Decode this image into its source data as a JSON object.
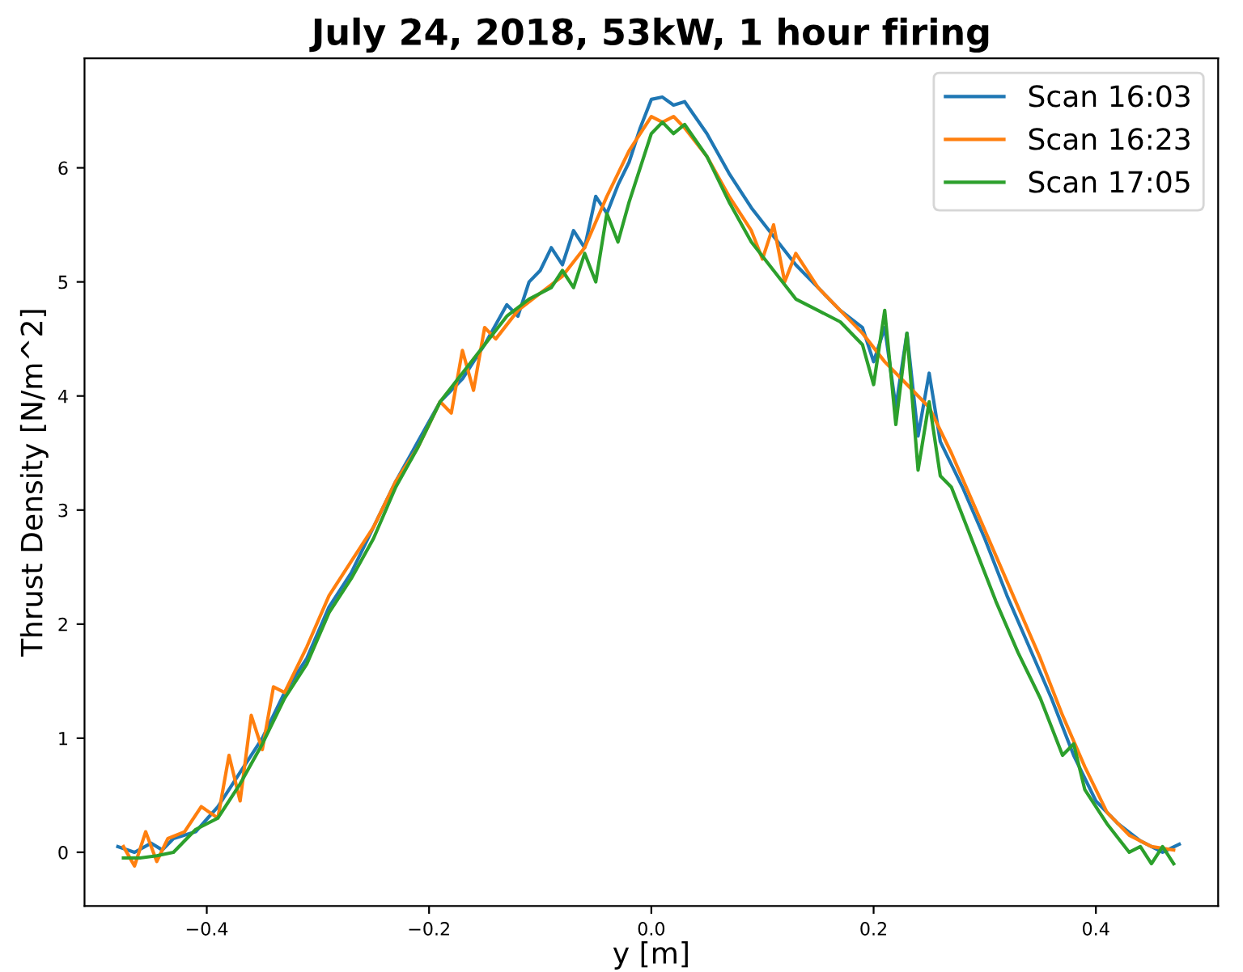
{
  "chart_data": {
    "type": "line",
    "title": "July 24, 2018, 53kW, 1 hour firing",
    "xlabel": "y [m]",
    "ylabel": "Thrust Density [N/m^2]",
    "xlim": [
      -0.51,
      0.51
    ],
    "ylim": [
      -0.47,
      6.96
    ],
    "xticks": [
      {
        "value": -0.4,
        "label": "−0.4"
      },
      {
        "value": -0.2,
        "label": "−0.2"
      },
      {
        "value": 0.0,
        "label": "0.0"
      },
      {
        "value": 0.2,
        "label": "0.2"
      },
      {
        "value": 0.4,
        "label": "0.4"
      }
    ],
    "yticks": [
      0,
      1,
      2,
      3,
      4,
      5,
      6
    ],
    "legend": "top right",
    "grid": false,
    "series": [
      {
        "name": "Scan 16:03",
        "color": "#1f77b4",
        "x": [
          -0.48,
          -0.465,
          -0.45,
          -0.44,
          -0.43,
          -0.41,
          -0.39,
          -0.37,
          -0.35,
          -0.33,
          -0.31,
          -0.29,
          -0.27,
          -0.25,
          -0.23,
          -0.21,
          -0.19,
          -0.17,
          -0.15,
          -0.13,
          -0.12,
          -0.11,
          -0.1,
          -0.09,
          -0.08,
          -0.07,
          -0.06,
          -0.05,
          -0.04,
          -0.03,
          -0.02,
          -0.01,
          0.0,
          0.01,
          0.02,
          0.03,
          0.05,
          0.07,
          0.09,
          0.11,
          0.13,
          0.15,
          0.17,
          0.19,
          0.2,
          0.21,
          0.22,
          0.23,
          0.24,
          0.25,
          0.26,
          0.28,
          0.3,
          0.32,
          0.34,
          0.36,
          0.38,
          0.4,
          0.42,
          0.44,
          0.46,
          0.475
        ],
        "values": [
          0.05,
          0.0,
          0.08,
          0.02,
          0.12,
          0.18,
          0.4,
          0.7,
          1.0,
          1.4,
          1.7,
          2.15,
          2.45,
          2.85,
          3.25,
          3.6,
          3.95,
          4.15,
          4.45,
          4.8,
          4.7,
          5.0,
          5.1,
          5.3,
          5.15,
          5.45,
          5.3,
          5.75,
          5.6,
          5.85,
          6.05,
          6.35,
          6.6,
          6.62,
          6.55,
          6.58,
          6.3,
          5.95,
          5.65,
          5.4,
          5.15,
          4.95,
          4.75,
          4.6,
          4.3,
          4.6,
          3.9,
          4.55,
          3.65,
          4.2,
          3.6,
          3.2,
          2.75,
          2.25,
          1.8,
          1.35,
          0.85,
          0.45,
          0.25,
          0.1,
          0.0,
          0.07
        ]
      },
      {
        "name": "Scan 16:23",
        "color": "#ff7f0e",
        "x": [
          -0.475,
          -0.465,
          -0.455,
          -0.445,
          -0.435,
          -0.42,
          -0.405,
          -0.39,
          -0.38,
          -0.37,
          -0.36,
          -0.35,
          -0.34,
          -0.33,
          -0.31,
          -0.29,
          -0.27,
          -0.25,
          -0.23,
          -0.21,
          -0.19,
          -0.18,
          -0.17,
          -0.16,
          -0.15,
          -0.14,
          -0.12,
          -0.1,
          -0.08,
          -0.06,
          -0.04,
          -0.02,
          0.0,
          0.01,
          0.02,
          0.03,
          0.05,
          0.07,
          0.09,
          0.1,
          0.11,
          0.12,
          0.13,
          0.15,
          0.17,
          0.19,
          0.21,
          0.23,
          0.25,
          0.27,
          0.29,
          0.31,
          0.33,
          0.35,
          0.37,
          0.39,
          0.41,
          0.43,
          0.45,
          0.47
        ],
        "values": [
          0.05,
          -0.12,
          0.18,
          -0.08,
          0.12,
          0.18,
          0.4,
          0.3,
          0.85,
          0.45,
          1.2,
          0.9,
          1.45,
          1.4,
          1.8,
          2.25,
          2.55,
          2.85,
          3.25,
          3.55,
          3.95,
          3.85,
          4.4,
          4.05,
          4.6,
          4.5,
          4.75,
          4.9,
          5.05,
          5.3,
          5.75,
          6.15,
          6.45,
          6.4,
          6.45,
          6.35,
          6.1,
          5.75,
          5.45,
          5.2,
          5.5,
          5.0,
          5.25,
          4.95,
          4.75,
          4.55,
          4.3,
          4.1,
          3.9,
          3.5,
          3.05,
          2.6,
          2.15,
          1.7,
          1.2,
          0.75,
          0.35,
          0.15,
          0.05,
          0.02
        ]
      },
      {
        "name": "Scan 17:05",
        "color": "#2ca02c",
        "x": [
          -0.475,
          -0.46,
          -0.445,
          -0.43,
          -0.41,
          -0.39,
          -0.37,
          -0.35,
          -0.33,
          -0.31,
          -0.29,
          -0.27,
          -0.25,
          -0.23,
          -0.21,
          -0.19,
          -0.17,
          -0.15,
          -0.13,
          -0.11,
          -0.09,
          -0.08,
          -0.07,
          -0.06,
          -0.05,
          -0.04,
          -0.03,
          -0.02,
          0.0,
          0.01,
          0.02,
          0.03,
          0.05,
          0.07,
          0.09,
          0.11,
          0.13,
          0.15,
          0.17,
          0.19,
          0.2,
          0.21,
          0.22,
          0.23,
          0.24,
          0.25,
          0.26,
          0.27,
          0.29,
          0.31,
          0.33,
          0.35,
          0.37,
          0.38,
          0.39,
          0.41,
          0.43,
          0.44,
          0.45,
          0.46,
          0.47
        ],
        "values": [
          -0.05,
          -0.05,
          -0.03,
          0.0,
          0.2,
          0.3,
          0.6,
          0.95,
          1.35,
          1.65,
          2.1,
          2.4,
          2.75,
          3.2,
          3.55,
          3.95,
          4.2,
          4.45,
          4.7,
          4.85,
          4.95,
          5.1,
          4.95,
          5.25,
          5.0,
          5.6,
          5.35,
          5.7,
          6.3,
          6.4,
          6.3,
          6.38,
          6.1,
          5.7,
          5.35,
          5.1,
          4.85,
          4.75,
          4.65,
          4.45,
          4.1,
          4.75,
          3.75,
          4.55,
          3.35,
          3.95,
          3.3,
          3.2,
          2.7,
          2.2,
          1.75,
          1.35,
          0.85,
          0.95,
          0.55,
          0.25,
          0.0,
          0.05,
          -0.1,
          0.05,
          -0.1
        ]
      }
    ]
  }
}
